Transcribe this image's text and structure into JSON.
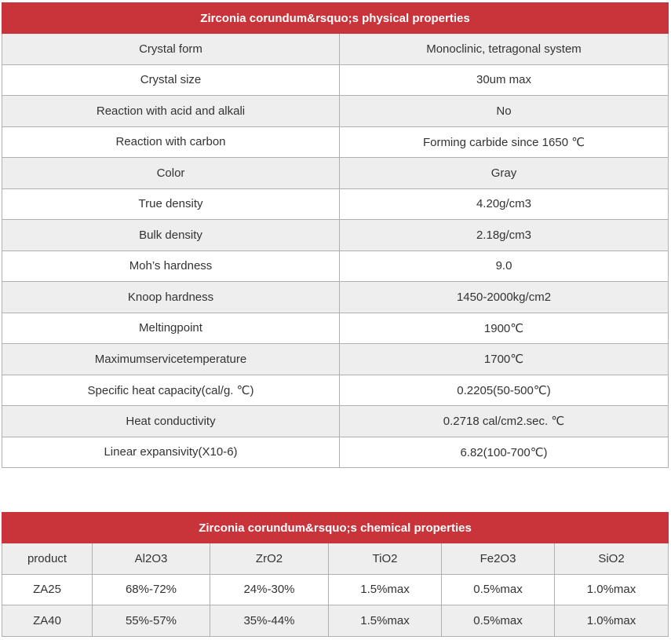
{
  "physical": {
    "title": "Zirconia corundum&rsquo;s physical properties",
    "rows": [
      {
        "property": "Crystal form",
        "value": "Monoclinic, tetragonal system"
      },
      {
        "property": "Crystal size",
        "value": "30um max"
      },
      {
        "property": "Reaction with acid and alkali",
        "value": "No"
      },
      {
        "property": "Reaction with carbon",
        "value": "Forming carbide since 1650 ℃"
      },
      {
        "property": "Color",
        "value": "Gray"
      },
      {
        "property": "True density",
        "value": "4.20g/cm3"
      },
      {
        "property": "Bulk density",
        "value": "2.18g/cm3"
      },
      {
        "property": "Moh’s hardness",
        "value": "9.0"
      },
      {
        "property": "Knoop hardness",
        "value": "1450-2000kg/cm2"
      },
      {
        "property": "Meltingpoint",
        "value": "1900℃"
      },
      {
        "property": "Maximumservicetemperature",
        "value": "1700℃"
      },
      {
        "property": "Specific heat capacity(cal/g. ℃)",
        "value": "0.2205(50-500℃)"
      },
      {
        "property": "Heat conductivity",
        "value": "0.2718 cal/cm2.sec. ℃"
      },
      {
        "property": "Linear expansivity(X10-6)",
        "value": "6.82(100-700℃)"
      }
    ]
  },
  "chemical": {
    "title": "Zirconia corundum&rsquo;s chemical properties",
    "headers": [
      "product",
      "Al2O3",
      "ZrO2",
      "TiO2",
      "Fe2O3",
      "SiO2"
    ],
    "rows": [
      [
        "ZA25",
        "68%-72%",
        "24%-30%",
        "1.5%max",
        "0.5%max",
        "1.0%max"
      ],
      [
        "ZA40",
        "55%-57%",
        "35%-44%",
        "1.5%max",
        "0.5%max",
        "1.0%max"
      ]
    ]
  }
}
